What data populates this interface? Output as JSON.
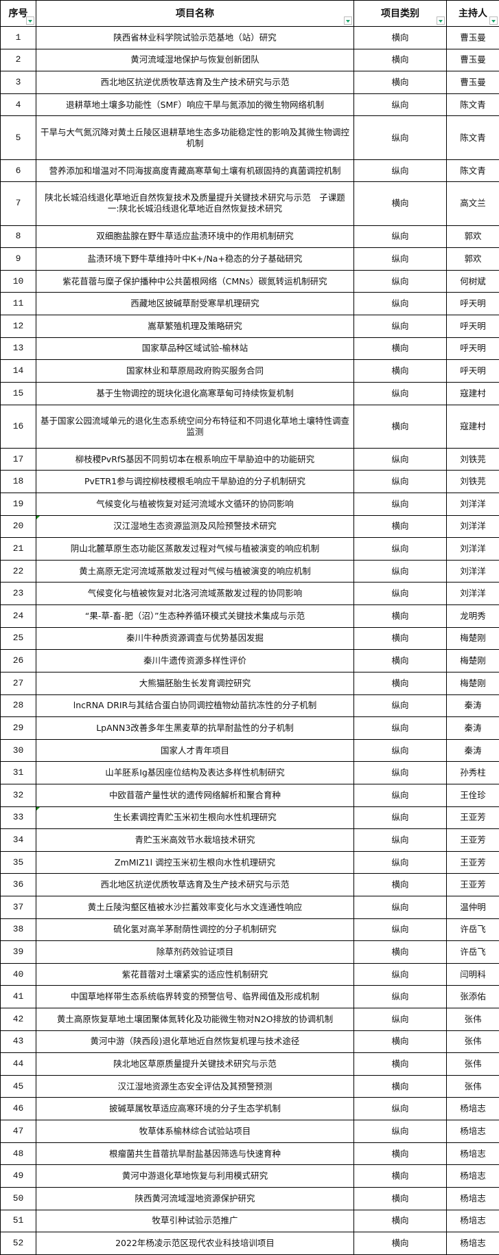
{
  "colors": {
    "filter_arrow": "#1aa36a",
    "text_flag": "#1a8a1a"
  },
  "header": {
    "index": "序号",
    "name": "项目名称",
    "category": "项目类别",
    "leader": "主持人"
  },
  "rows": [
    {
      "index": "1",
      "name": "陕西省林业科学院试验示范基地（站）研究",
      "category": "横向",
      "leader": "曹玉曼"
    },
    {
      "index": "2",
      "name": "黄河流域湿地保护与恢复创新团队",
      "category": "横向",
      "leader": "曹玉曼"
    },
    {
      "index": "3",
      "name": "西北地区抗逆优质牧草选育及生产技术研究与示范",
      "category": "横向",
      "leader": "曹玉曼"
    },
    {
      "index": "4",
      "name": "退耕草地土壤多功能性（SMF）响应干旱与氮添加的微生物网络机制",
      "category": "纵向",
      "leader": "陈文青"
    },
    {
      "index": "5",
      "name": "干旱与大气氮沉降对黄土丘陵区退耕草地生态多功能稳定性的影响及其微生物调控机制",
      "category": "纵向",
      "leader": "陈文青"
    },
    {
      "index": "6",
      "name": "营养添加和增温对不同海拔高度青藏高寒草甸土壤有机碳固持的真菌调控机制",
      "category": "纵向",
      "leader": "陈文青"
    },
    {
      "index": "7",
      "name": "陕北长城沿线退化草地近自然恢复技术及质量提升关键技术研究与示范　子课题一:陕北长城沿线退化草地近自然恢复技术研究",
      "category": "横向",
      "leader": "高文兰"
    },
    {
      "index": "8",
      "name": "双细胞盐腺在野牛草适应盐渍环境中的作用机制研究",
      "category": "纵向",
      "leader": "郭欢"
    },
    {
      "index": "9",
      "name": "盐渍环境下野牛草维持叶中K+/Na+稳态的分子基础研究",
      "category": "纵向",
      "leader": "郭欢"
    },
    {
      "index": "10",
      "name": "紫花苜蓿与糜子保护播种中公共菌根网络（CMNs）碳氮转运机制研究",
      "category": "纵向",
      "leader": "何树斌"
    },
    {
      "index": "11",
      "name": "西藏地区披碱草耐受寒旱机理研究",
      "category": "纵向",
      "leader": "呼天明"
    },
    {
      "index": "12",
      "name": "嵩草繁殖机理及策略研究",
      "category": "纵向",
      "leader": "呼天明"
    },
    {
      "index": "13",
      "name": "国家草品种区域试验-榆林站",
      "category": "横向",
      "leader": "呼天明"
    },
    {
      "index": "14",
      "name": "国家林业和草原局政府购买服务合同",
      "category": "横向",
      "leader": "呼天明"
    },
    {
      "index": "15",
      "name": "基于生物调控的斑块化退化高寒草甸可持续恢复机制",
      "category": "纵向",
      "leader": "寇建村"
    },
    {
      "index": "16",
      "name": "基于国家公园流域单元的退化生态系统空间分布特征和不同退化草地土壤特性调查监测",
      "category": "横向",
      "leader": "寇建村"
    },
    {
      "index": "17",
      "name": "柳枝稷PvRfS基因不同剪切本在根系响应干旱胁迫中的功能研究",
      "category": "纵向",
      "leader": "刘铁芫"
    },
    {
      "index": "18",
      "name": "PvETR1参与调控柳枝稷根毛响应干旱胁迫的分子机制研究",
      "category": "纵向",
      "leader": "刘铁芫"
    },
    {
      "index": "19",
      "name": "气候变化与植被恢复对延河流域水文循环的协同影响",
      "category": "纵向",
      "leader": "刘洋洋"
    },
    {
      "index": "20",
      "name": "汉江湿地生态资源监测及风险预警技术研究",
      "category": "横向",
      "leader": "刘洋洋"
    },
    {
      "index": "21",
      "name": "阴山北麓草原生态功能区蒸散发过程对气候与植被演变的响应机制",
      "category": "纵向",
      "leader": "刘洋洋"
    },
    {
      "index": "22",
      "name": "黄土高原无定河流域蒸散发过程对气候与植被演变的响应机制",
      "category": "纵向",
      "leader": "刘洋洋"
    },
    {
      "index": "23",
      "name": "气候变化与植被恢复对北洛河流域蒸散发过程的协同影响",
      "category": "纵向",
      "leader": "刘洋洋"
    },
    {
      "index": "24",
      "name": "“果-草-畜-肥（沼）”生态种养循环模式关键技术集成与示范",
      "category": "横向",
      "leader": "龙明秀"
    },
    {
      "index": "25",
      "name": "秦川牛种质资源调查与优势基因发掘",
      "category": "横向",
      "leader": "梅楚刚"
    },
    {
      "index": "26",
      "name": "秦川牛遗传资源多样性评价",
      "category": "横向",
      "leader": "梅楚刚"
    },
    {
      "index": "27",
      "name": "大熊猫胚胎生长发育调控研究",
      "category": "横向",
      "leader": "梅楚刚"
    },
    {
      "index": "28",
      "name": "lncRNA DRIR与其结合蛋白协同调控植物幼苗抗冻性的分子机制",
      "category": "纵向",
      "leader": "秦涛"
    },
    {
      "index": "29",
      "name": "LpANN3改善多年生黑麦草的抗旱耐盐性的分子机制",
      "category": "纵向",
      "leader": "秦涛"
    },
    {
      "index": "30",
      "name": "国家人才青年项目",
      "category": "纵向",
      "leader": "秦涛"
    },
    {
      "index": "31",
      "name": "山羊胚系Ig基因座位结构及表达多样性机制研究",
      "category": "纵向",
      "leader": "孙秀柱"
    },
    {
      "index": "32",
      "name": "中欧苜蓿产量性状的遗传网络解析和聚合育种",
      "category": "纵向",
      "leader": "王佺珍"
    },
    {
      "index": "33",
      "name": "生长素调控青贮玉米初生根向水性机理研究",
      "category": "纵向",
      "leader": "王亚芳"
    },
    {
      "index": "34",
      "name": "青贮玉米高效节水栽培技术研究",
      "category": "纵向",
      "leader": "王亚芳"
    },
    {
      "index": "35",
      "name": "ZmMIZ1l 调控玉米初生根向水性机理研究",
      "category": "纵向",
      "leader": "王亚芳"
    },
    {
      "index": "36",
      "name": "西北地区抗逆优质牧草选育及生产技术研究与示范",
      "category": "横向",
      "leader": "王亚芳"
    },
    {
      "index": "37",
      "name": "黄土丘陵沟壑区植被水沙拦蓄效率变化与水文连通性响应",
      "category": "纵向",
      "leader": "温仲明"
    },
    {
      "index": "38",
      "name": "硫化氢对高羊茅耐荫性调控的分子机制研究",
      "category": "纵向",
      "leader": "许岳飞"
    },
    {
      "index": "39",
      "name": "除草剂药效验证项目",
      "category": "横向",
      "leader": "许岳飞"
    },
    {
      "index": "40",
      "name": "紫花苜蓿对土壤紧实的适应性机制研究",
      "category": "纵向",
      "leader": "闫明科"
    },
    {
      "index": "41",
      "name": "中国草地样带生态系统临界转变的预警信号、临界阈值及形成机制",
      "category": "纵向",
      "leader": "张添佑"
    },
    {
      "index": "42",
      "name": "黄土高原恢复草地土壤团聚体氮转化及功能微生物对N2O排放的协调机制",
      "category": "纵向",
      "leader": "张伟"
    },
    {
      "index": "43",
      "name": "黄河中游（陕西段)退化草地近自然恢复机理与技术途径",
      "category": "横向",
      "leader": "张伟"
    },
    {
      "index": "44",
      "name": "陕北地区草原质量提升关键技术研究与示范",
      "category": "横向",
      "leader": "张伟"
    },
    {
      "index": "45",
      "name": "汉江湿地资源生态安全评估及其预警预测",
      "category": "横向",
      "leader": "张伟"
    },
    {
      "index": "46",
      "name": "披碱草属牧草适应高寒环境的分子生态学机制",
      "category": "纵向",
      "leader": "杨培志"
    },
    {
      "index": "47",
      "name": "牧草体系榆林综合试验站项目",
      "category": "纵向",
      "leader": "杨培志"
    },
    {
      "index": "48",
      "name": "根瘤菌共生苜蓿抗旱耐盐基因筛选与快速育种",
      "category": "横向",
      "leader": "杨培志"
    },
    {
      "index": "49",
      "name": "黄河中游退化草地恢复与利用模式研究",
      "category": "横向",
      "leader": "杨培志"
    },
    {
      "index": "50",
      "name": "陕西黄河流域湿地资源保护研究",
      "category": "横向",
      "leader": "杨培志"
    },
    {
      "index": "51",
      "name": "牧草引种试验示范推广",
      "category": "横向",
      "leader": "杨培志"
    },
    {
      "index": "52",
      "name": "2022年杨凌示范区现代农业科技培训项目",
      "category": "横向",
      "leader": "杨培志"
    }
  ]
}
